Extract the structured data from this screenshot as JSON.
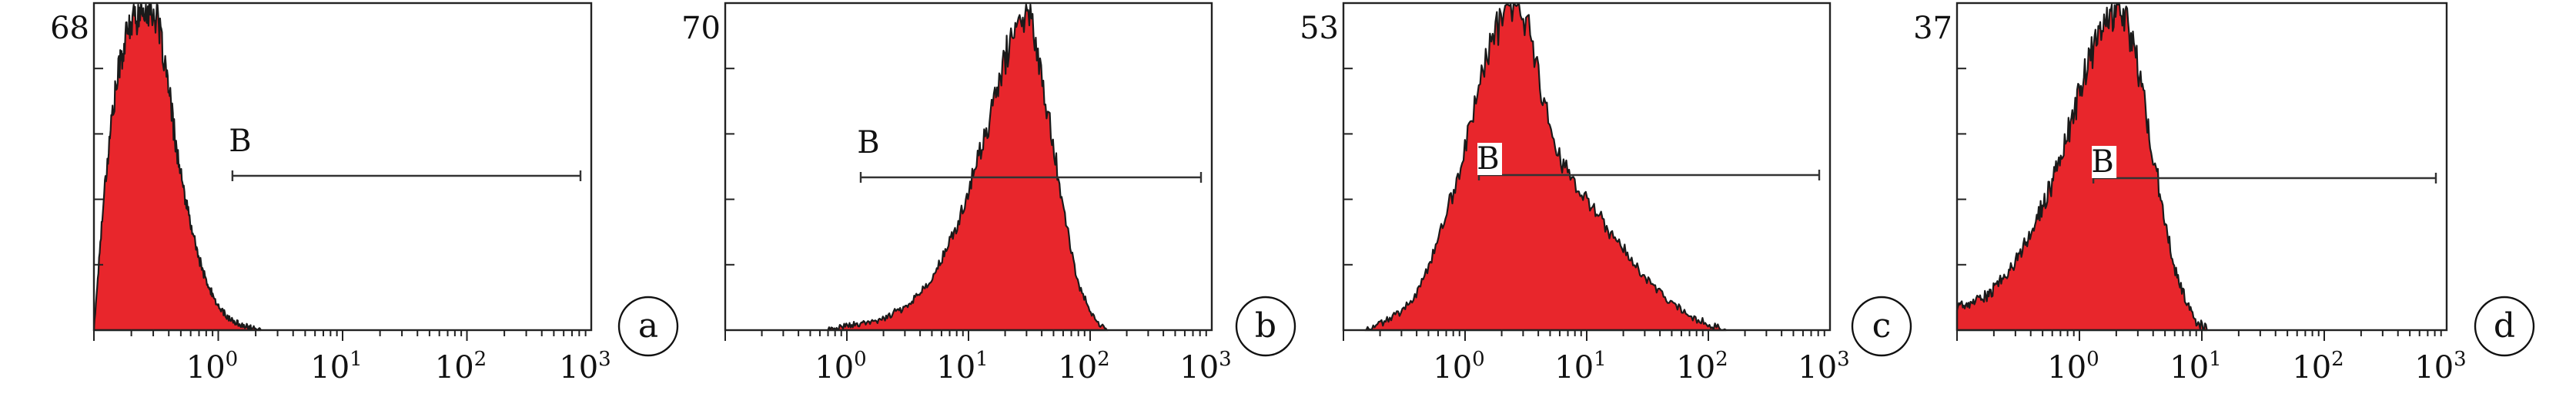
{
  "chart_data": [
    {
      "type": "area",
      "panel": "a",
      "y_max_label": "68",
      "gate": {
        "label": "B",
        "from": 1.3,
        "to": 1000
      },
      "x_ticks": [
        {
          "base": "10",
          "exp": "0",
          "value": 1
        },
        {
          "base": "10",
          "exp": "1",
          "value": 10
        },
        {
          "base": "10",
          "exp": "2",
          "value": 100
        },
        {
          "base": "10",
          "exp": "3",
          "value": 1000
        }
      ],
      "xlim": [
        0.1,
        1000
      ],
      "x_scale": "log",
      "ylim": [
        0,
        68
      ],
      "color": "#e8262c",
      "peak": {
        "x": 0.28,
        "y": 68
      },
      "x": [
        0.1,
        0.12,
        0.14,
        0.16,
        0.18,
        0.2,
        0.22,
        0.25,
        0.28,
        0.32,
        0.36,
        0.4,
        0.45,
        0.5,
        0.6,
        0.7,
        0.8,
        1.0,
        1.2,
        1.5,
        1.8,
        2.2
      ],
      "values": [
        0,
        28,
        45,
        55,
        61,
        64,
        66,
        67,
        68,
        65,
        58,
        50,
        40,
        32,
        22,
        15,
        10,
        5,
        2.5,
        1.2,
        0.5,
        0
      ]
    },
    {
      "type": "area",
      "panel": "b",
      "y_max_label": "70",
      "gate": {
        "label": "B",
        "from": 1.3,
        "to": 1000
      },
      "x_ticks": [
        {
          "base": "10",
          "exp": "0",
          "value": 1
        },
        {
          "base": "10",
          "exp": "1",
          "value": 10
        },
        {
          "base": "10",
          "exp": "2",
          "value": 100
        },
        {
          "base": "10",
          "exp": "3",
          "value": 1000
        }
      ],
      "xlim": [
        0.1,
        1000
      ],
      "x_scale": "log",
      "ylim": [
        0,
        70
      ],
      "color": "#e8262c",
      "peak": {
        "x": 28,
        "y": 70
      },
      "x": [
        0.7,
        1.0,
        1.5,
        2.0,
        3.0,
        4.0,
        5.0,
        6.0,
        8.0,
        10,
        12,
        15,
        18,
        22,
        26,
        30,
        35,
        40,
        50,
        60,
        70,
        80,
        100,
        120,
        140
      ],
      "values": [
        0,
        1,
        1.5,
        2.5,
        5,
        8,
        11,
        15,
        22,
        30,
        37,
        45,
        54,
        62,
        66,
        69,
        64,
        55,
        40,
        27,
        17,
        10,
        4,
        1,
        0
      ]
    },
    {
      "type": "area",
      "panel": "c",
      "y_max_label": "53",
      "gate": {
        "label": "B",
        "from": 1.3,
        "to": 1000
      },
      "x_ticks": [
        {
          "base": "10",
          "exp": "0",
          "value": 1
        },
        {
          "base": "10",
          "exp": "1",
          "value": 10
        },
        {
          "base": "10",
          "exp": "2",
          "value": 100
        },
        {
          "base": "10",
          "exp": "3",
          "value": 1000
        }
      ],
      "xlim": [
        0.1,
        1000
      ],
      "x_scale": "log",
      "ylim": [
        0,
        53
      ],
      "color": "#e8262c",
      "peak": {
        "x": 2.5,
        "y": 53
      },
      "x": [
        0.15,
        0.2,
        0.3,
        0.4,
        0.5,
        0.6,
        0.8,
        1.0,
        1.2,
        1.5,
        1.8,
        2.2,
        2.6,
        3.0,
        3.5,
        4.0,
        5.0,
        6.0,
        8.0,
        10,
        13,
        17,
        22,
        30,
        40,
        55,
        75,
        100,
        140
      ],
      "values": [
        0,
        1,
        3,
        6,
        10,
        15,
        22,
        30,
        37,
        44,
        49,
        52,
        53,
        51,
        47,
        42,
        34,
        28,
        24,
        21,
        18,
        15,
        12,
        9,
        6,
        4,
        2,
        1,
        0
      ]
    },
    {
      "type": "area",
      "panel": "d",
      "y_max_label": "37",
      "gate": {
        "label": "B",
        "from": 1.3,
        "to": 1000
      },
      "x_ticks": [
        {
          "base": "10",
          "exp": "0",
          "value": 1
        },
        {
          "base": "10",
          "exp": "1",
          "value": 10
        },
        {
          "base": "10",
          "exp": "2",
          "value": 100
        },
        {
          "base": "10",
          "exp": "3",
          "value": 1000
        }
      ],
      "xlim": [
        0.1,
        1000
      ],
      "x_scale": "log",
      "ylim": [
        0,
        37
      ],
      "color": "#e8262c",
      "peak": {
        "x": 2.0,
        "y": 37
      },
      "x": [
        0.1,
        0.13,
        0.18,
        0.25,
        0.32,
        0.4,
        0.5,
        0.6,
        0.8,
        1.0,
        1.2,
        1.5,
        1.8,
        2.0,
        2.3,
        2.7,
        3.2,
        4.0,
        5.0,
        6.0,
        7.5,
        9.0,
        11
      ],
      "values": [
        2.5,
        3,
        4,
        6,
        8.5,
        11,
        14,
        17,
        22,
        27,
        31,
        34,
        36,
        37,
        36,
        33,
        28,
        20,
        12,
        7,
        3,
        1,
        0
      ]
    }
  ]
}
